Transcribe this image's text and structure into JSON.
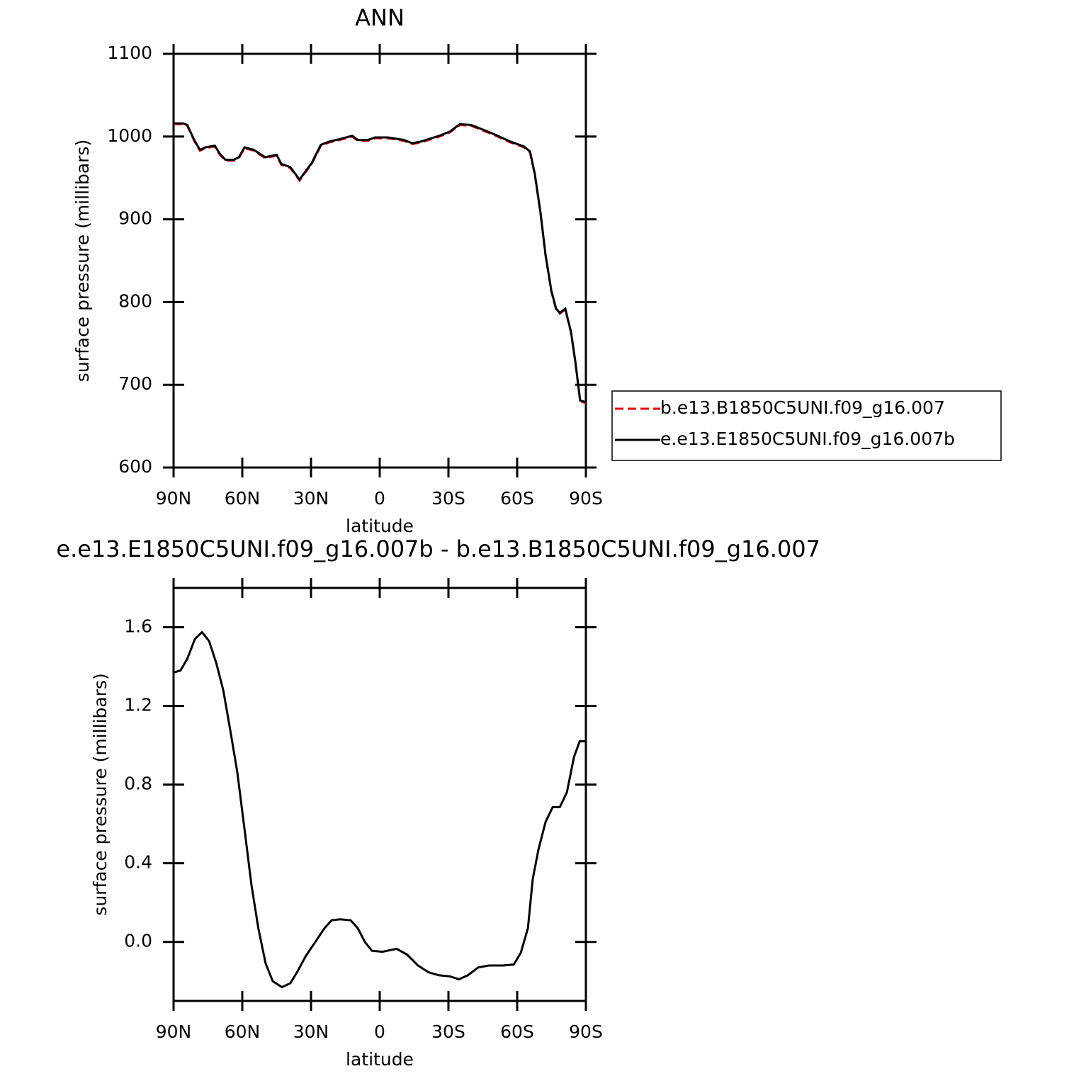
{
  "chart_data": [
    {
      "type": "line",
      "title": "ANN",
      "xlabel": "latitude",
      "ylabel": "surface pressure (millibars)",
      "xlim": [
        90,
        -90
      ],
      "ylim": [
        600,
        1100
      ],
      "xticks": [
        {
          "value": 90,
          "label": "90N"
        },
        {
          "value": 60,
          "label": "60N"
        },
        {
          "value": 30,
          "label": "30N"
        },
        0,
        {
          "value": -30,
          "label": "30S"
        },
        {
          "value": -60,
          "label": "60S"
        },
        {
          "value": -90,
          "label": "90S"
        }
      ],
      "yticks": [
        600,
        700,
        800,
        900,
        1000,
        1100
      ],
      "x": [
        90,
        86,
        84,
        81,
        78.5,
        76,
        72,
        70,
        67.4,
        63.7,
        61.5,
        59,
        55,
        50,
        45,
        43,
        39,
        35,
        29.7,
        25.7,
        22,
        17.3,
        12,
        9.6,
        5,
        2,
        -3.6,
        -10.4,
        -14.2,
        -18,
        -26,
        -30.6,
        -35,
        -40,
        -44.5,
        -50.7,
        -57,
        -63,
        -65.6,
        -67.7,
        -70.2,
        -72.4,
        -74.9,
        -77,
        -78.6,
        -81,
        -83.5,
        -85.4,
        -87.5,
        -90
      ],
      "series": [
        {
          "name": "b.e13.B1850C5UNI.f09_g16.007",
          "color": "#e00000",
          "dash": true,
          "values": [
            1015,
            1015,
            1013,
            995,
            983,
            986,
            988,
            979,
            971,
            971,
            974,
            986,
            983,
            974,
            977,
            966,
            962,
            947,
            967,
            989,
            993,
            996,
            1000,
            995,
            995,
            998,
            998,
            995,
            991,
            993,
            1000,
            1005,
            1014,
            1013,
            1008,
            1001,
            993,
            987,
            981,
            954,
            907,
            856,
            813,
            791,
            786,
            791,
            763,
            727,
            680,
            678
          ]
        },
        {
          "name": "e.e13.E1850C5UNI.f09_g16.007b",
          "color": "#000000",
          "dash": false,
          "values": [
            1016,
            1016,
            1014,
            996,
            984,
            987,
            989,
            980,
            972,
            972,
            975,
            987,
            984,
            975,
            978,
            967,
            963,
            948,
            968,
            990,
            994,
            997,
            1001,
            996,
            996,
            999,
            999,
            996,
            992,
            994,
            1001,
            1006,
            1015,
            1014,
            1009,
            1002,
            994,
            988,
            982,
            955,
            908,
            857,
            814,
            792,
            787,
            792,
            764,
            728,
            681,
            679
          ]
        }
      ],
      "legend": "right"
    },
    {
      "type": "line",
      "title": "e.e13.E1850C5UNI.f09_g16.007b - b.e13.B1850C5UNI.f09_g16.007",
      "xlabel": "latitude",
      "ylabel": "surface pressure (millibars)",
      "xlim": [
        90,
        -90
      ],
      "ylim": [
        -0.3,
        1.8
      ],
      "xticks": [
        {
          "value": 90,
          "label": "90N"
        },
        {
          "value": 60,
          "label": "60N"
        },
        {
          "value": 30,
          "label": "30N"
        },
        0,
        {
          "value": -30,
          "label": "30S"
        },
        {
          "value": -60,
          "label": "60S"
        },
        {
          "value": -90,
          "label": "90S"
        }
      ],
      "yticks": [
        {
          "value": 0,
          "label": "0.0"
        },
        0.4,
        0.8,
        1.2,
        1.6
      ],
      "x": [
        90,
        87,
        84,
        80.7,
        77.6,
        74.5,
        71.4,
        68.3,
        65.3,
        62.2,
        59.1,
        56,
        53,
        49.8,
        46.7,
        42.7,
        39,
        35.9,
        32.2,
        28.1,
        24.1,
        21,
        17.3,
        12.7,
        9.6,
        6.5,
        3.4,
        -1.2,
        -7.4,
        -12,
        -16.7,
        -21.4,
        -26,
        -30.6,
        -34.6,
        -38.4,
        -43,
        -47.6,
        -53.8,
        -58.5,
        -61.6,
        -64.7,
        -66.8,
        -69.3,
        -72.4,
        -75.5,
        -78.6,
        -81.7,
        -84.8,
        -87.3,
        -90
      ],
      "series": [
        {
          "color": "#000000",
          "dash": false,
          "values": [
            1.37,
            1.38,
            1.44,
            1.54,
            1.575,
            1.53,
            1.42,
            1.28,
            1.08,
            0.865,
            0.58,
            0.29,
            0.07,
            -0.11,
            -0.2,
            -0.23,
            -0.21,
            -0.15,
            -0.07,
            0.0,
            0.07,
            0.11,
            0.115,
            0.11,
            0.07,
            0.0,
            -0.045,
            -0.05,
            -0.035,
            -0.065,
            -0.12,
            -0.155,
            -0.17,
            -0.175,
            -0.19,
            -0.17,
            -0.13,
            -0.12,
            -0.12,
            -0.115,
            -0.055,
            0.07,
            0.32,
            0.47,
            0.61,
            0.685,
            0.685,
            0.76,
            0.94,
            1.02,
            1.02
          ]
        }
      ]
    }
  ]
}
